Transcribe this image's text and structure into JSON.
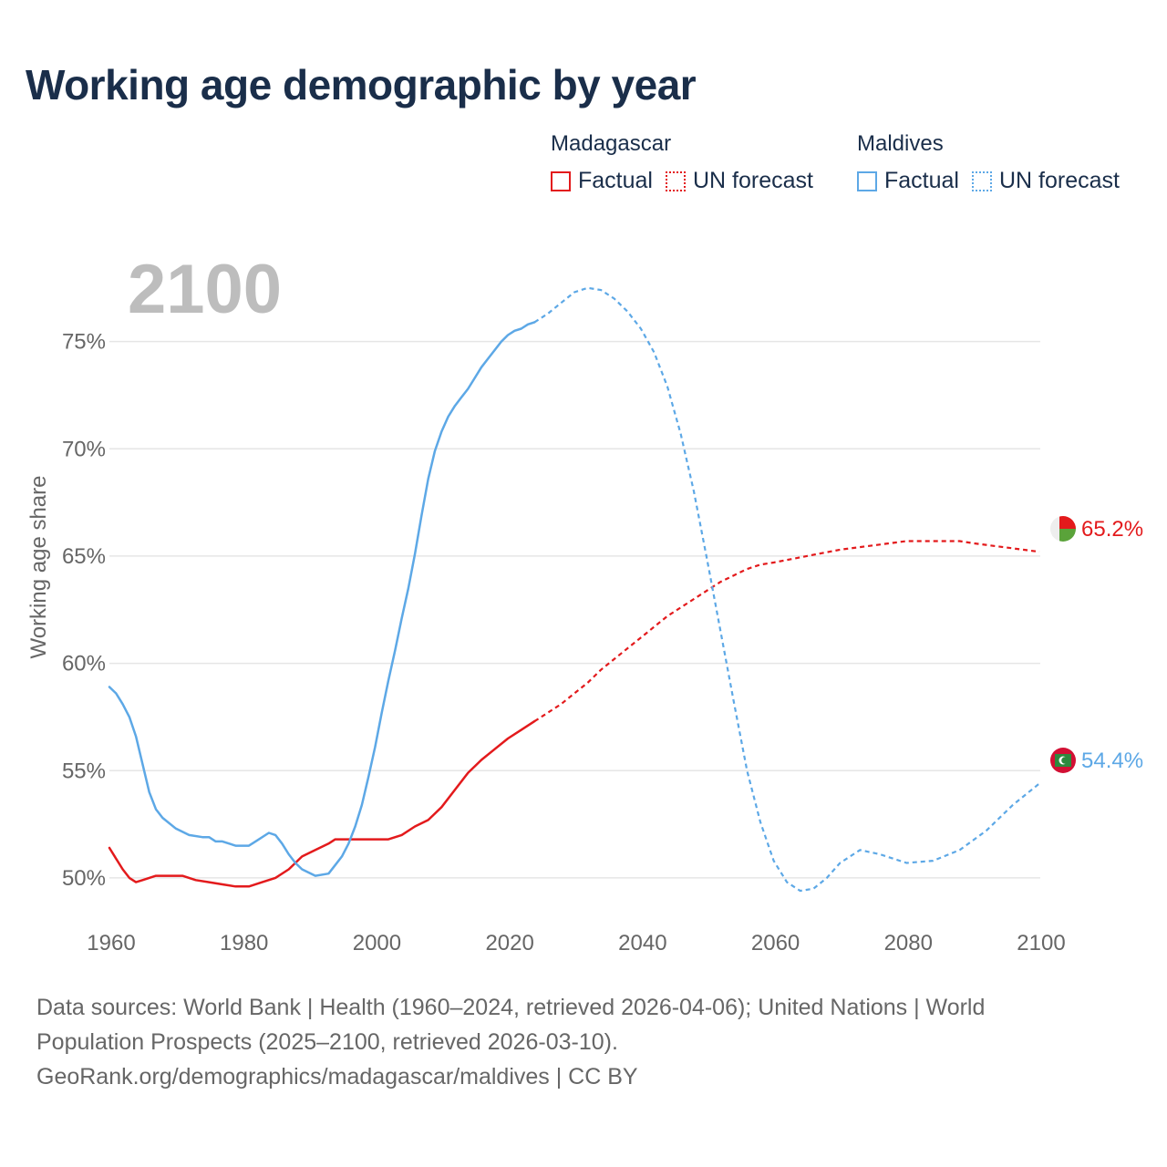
{
  "chart_data": {
    "type": "line",
    "title": "Working age demographic by year",
    "ylabel": "Working age share",
    "xlabel": "",
    "current_year_label": "2100",
    "xlim": [
      1960,
      2100
    ],
    "ylim": [
      48,
      78
    ],
    "x_ticks": [
      1960,
      1980,
      2000,
      2020,
      2040,
      2060,
      2080,
      2100
    ],
    "y_ticks": [
      50,
      55,
      60,
      65,
      70,
      75
    ],
    "y_tick_labels": [
      "50%",
      "55%",
      "60%",
      "65%",
      "70%",
      "75%"
    ],
    "legend": {
      "groups": [
        {
          "name": "Madagascar",
          "factual_label": "Factual",
          "forecast_label": "UN forecast"
        },
        {
          "name": "Maldives",
          "factual_label": "Factual",
          "forecast_label": "UN forecast"
        }
      ]
    },
    "series": [
      {
        "name": "Madagascar",
        "color": "#e31a1c",
        "end_label": "65.2%",
        "factual": [
          [
            1960,
            51.4
          ],
          [
            1961,
            50.9
          ],
          [
            1962,
            50.4
          ],
          [
            1963,
            50.0
          ],
          [
            1964,
            49.8
          ],
          [
            1965,
            49.9
          ],
          [
            1967,
            50.1
          ],
          [
            1970,
            50.1
          ],
          [
            1971,
            50.1
          ],
          [
            1973,
            49.9
          ],
          [
            1975,
            49.8
          ],
          [
            1977,
            49.7
          ],
          [
            1979,
            49.6
          ],
          [
            1981,
            49.6
          ],
          [
            1983,
            49.8
          ],
          [
            1985,
            50.0
          ],
          [
            1987,
            50.4
          ],
          [
            1989,
            51.0
          ],
          [
            1991,
            51.3
          ],
          [
            1993,
            51.6
          ],
          [
            1994,
            51.8
          ],
          [
            1996,
            51.8
          ],
          [
            1998,
            51.8
          ],
          [
            2000,
            51.8
          ],
          [
            2002,
            51.8
          ],
          [
            2004,
            52.0
          ],
          [
            2006,
            52.4
          ],
          [
            2008,
            52.7
          ],
          [
            2010,
            53.3
          ],
          [
            2012,
            54.1
          ],
          [
            2014,
            54.9
          ],
          [
            2016,
            55.5
          ],
          [
            2018,
            56.0
          ],
          [
            2020,
            56.5
          ],
          [
            2022,
            56.9
          ],
          [
            2024,
            57.3
          ]
        ],
        "forecast": [
          [
            2024,
            57.3
          ],
          [
            2026,
            57.7
          ],
          [
            2028,
            58.1
          ],
          [
            2030,
            58.6
          ],
          [
            2032,
            59.1
          ],
          [
            2034,
            59.7
          ],
          [
            2036,
            60.2
          ],
          [
            2038,
            60.7
          ],
          [
            2040,
            61.2
          ],
          [
            2042,
            61.7
          ],
          [
            2044,
            62.2
          ],
          [
            2046,
            62.6
          ],
          [
            2048,
            63.0
          ],
          [
            2050,
            63.4
          ],
          [
            2052,
            63.8
          ],
          [
            2054,
            64.1
          ],
          [
            2056,
            64.4
          ],
          [
            2058,
            64.6
          ],
          [
            2060,
            64.7
          ],
          [
            2065,
            65.0
          ],
          [
            2070,
            65.3
          ],
          [
            2075,
            65.5
          ],
          [
            2080,
            65.7
          ],
          [
            2085,
            65.7
          ],
          [
            2088,
            65.7
          ],
          [
            2090,
            65.6
          ],
          [
            2095,
            65.4
          ],
          [
            2100,
            65.2
          ]
        ]
      },
      {
        "name": "Maldives",
        "color": "#5da8e6",
        "end_label": "54.4%",
        "factual": [
          [
            1960,
            58.9
          ],
          [
            1961,
            58.6
          ],
          [
            1962,
            58.1
          ],
          [
            1963,
            57.5
          ],
          [
            1964,
            56.6
          ],
          [
            1965,
            55.3
          ],
          [
            1966,
            54.0
          ],
          [
            1967,
            53.2
          ],
          [
            1968,
            52.8
          ],
          [
            1970,
            52.3
          ],
          [
            1972,
            52.0
          ],
          [
            1974,
            51.9
          ],
          [
            1975,
            51.9
          ],
          [
            1976,
            51.7
          ],
          [
            1977,
            51.7
          ],
          [
            1979,
            51.5
          ],
          [
            1981,
            51.5
          ],
          [
            1982,
            51.7
          ],
          [
            1984,
            52.1
          ],
          [
            1985,
            52.0
          ],
          [
            1986,
            51.6
          ],
          [
            1987,
            51.1
          ],
          [
            1988,
            50.7
          ],
          [
            1989,
            50.4
          ],
          [
            1991,
            50.1
          ],
          [
            1993,
            50.2
          ],
          [
            1994,
            50.6
          ],
          [
            1995,
            51.0
          ],
          [
            1996,
            51.6
          ],
          [
            1997,
            52.4
          ],
          [
            1998,
            53.4
          ],
          [
            1999,
            54.7
          ],
          [
            2000,
            56.1
          ],
          [
            2001,
            57.7
          ],
          [
            2002,
            59.2
          ],
          [
            2003,
            60.6
          ],
          [
            2004,
            62.1
          ],
          [
            2005,
            63.5
          ],
          [
            2006,
            65.1
          ],
          [
            2007,
            66.9
          ],
          [
            2008,
            68.6
          ],
          [
            2009,
            69.9
          ],
          [
            2010,
            70.8
          ],
          [
            2011,
            71.5
          ],
          [
            2012,
            72.0
          ],
          [
            2013,
            72.4
          ],
          [
            2014,
            72.8
          ],
          [
            2015,
            73.3
          ],
          [
            2016,
            73.8
          ],
          [
            2017,
            74.2
          ],
          [
            2018,
            74.6
          ],
          [
            2019,
            75.0
          ],
          [
            2020,
            75.3
          ],
          [
            2021,
            75.5
          ],
          [
            2022,
            75.6
          ],
          [
            2023,
            75.8
          ],
          [
            2024,
            75.9
          ]
        ],
        "forecast": [
          [
            2024,
            75.9
          ],
          [
            2026,
            76.3
          ],
          [
            2028,
            76.8
          ],
          [
            2030,
            77.3
          ],
          [
            2032,
            77.5
          ],
          [
            2034,
            77.4
          ],
          [
            2036,
            77.0
          ],
          [
            2038,
            76.4
          ],
          [
            2040,
            75.6
          ],
          [
            2042,
            74.5
          ],
          [
            2044,
            72.9
          ],
          [
            2046,
            70.7
          ],
          [
            2048,
            68.0
          ],
          [
            2050,
            64.8
          ],
          [
            2052,
            61.5
          ],
          [
            2054,
            58.2
          ],
          [
            2056,
            55.0
          ],
          [
            2058,
            52.6
          ],
          [
            2060,
            50.8
          ],
          [
            2062,
            49.8
          ],
          [
            2064,
            49.4
          ],
          [
            2066,
            49.5
          ],
          [
            2068,
            50.0
          ],
          [
            2070,
            50.7
          ],
          [
            2073,
            51.3
          ],
          [
            2076,
            51.1
          ],
          [
            2080,
            50.7
          ],
          [
            2084,
            50.8
          ],
          [
            2088,
            51.3
          ],
          [
            2092,
            52.2
          ],
          [
            2096,
            53.4
          ],
          [
            2100,
            54.4
          ]
        ]
      }
    ]
  },
  "source": {
    "line1": "Data sources: World Bank | Health (1960–2024, retrieved 2026-04-06); United Nations | World",
    "line2": "Population Prospects (2025–2100, retrieved 2026-03-10).",
    "line3": "GeoRank.org/demographics/madagascar/maldives | CC BY"
  },
  "colors": {
    "title": "#1a2e4a",
    "madagascar": "#e31a1c",
    "maldives": "#5da8e6",
    "year_watermark": "#bdbdbd"
  }
}
